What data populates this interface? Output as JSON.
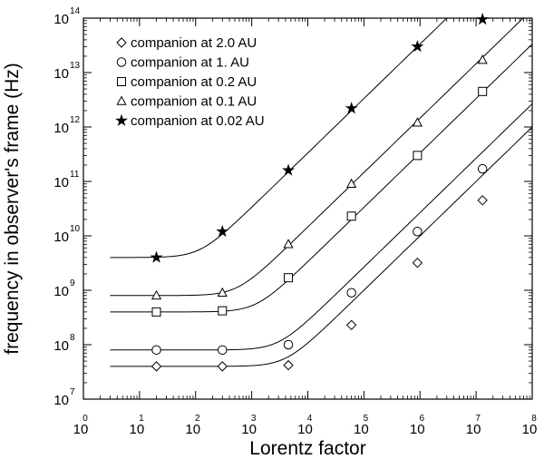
{
  "chart_data": {
    "type": "line",
    "xlabel": "Lorentz factor",
    "ylabel": "frequency in observer's frame (Hz)",
    "x_scale": "log",
    "y_scale": "log",
    "xlim": [
      1,
      100000000
    ],
    "ylim": [
      10000000,
      100000000000000
    ],
    "x_ticks": [
      {
        "base": "10",
        "exp": "0"
      },
      {
        "base": "10",
        "exp": "1"
      },
      {
        "base": "10",
        "exp": "2"
      },
      {
        "base": "10",
        "exp": "3"
      },
      {
        "base": "10",
        "exp": "4"
      },
      {
        "base": "10",
        "exp": "5"
      },
      {
        "base": "10",
        "exp": "6"
      },
      {
        "base": "10",
        "exp": "7"
      },
      {
        "base": "10",
        "exp": "8"
      }
    ],
    "y_ticks": [
      {
        "base": "10",
        "exp": "7"
      },
      {
        "base": "10",
        "exp": "8"
      },
      {
        "base": "10",
        "exp": "9"
      },
      {
        "base": "10",
        "exp": "10"
      },
      {
        "base": "10",
        "exp": "11"
      },
      {
        "base": "10",
        "exp": "12"
      },
      {
        "base": "10",
        "exp": "13"
      },
      {
        "base": "10",
        "exp": "14"
      }
    ],
    "grid": false,
    "legend_position": "top-left",
    "marker_x": [
      20,
      300,
      4500,
      60000,
      900000,
      13000000
    ],
    "series": [
      {
        "name": "companion at 2.0 AU",
        "marker": "diamond",
        "plateau": 40000000,
        "knee": 4000,
        "points": [
          [
            20,
            40000000
          ],
          [
            300,
            40000000
          ],
          [
            4500,
            42000000
          ],
          [
            60000,
            230000000
          ],
          [
            900000,
            3200000000
          ],
          [
            13000000,
            45000000000
          ]
        ]
      },
      {
        "name": "companion at 1. AU",
        "marker": "circle",
        "plateau": 80000000,
        "knee": 3000,
        "points": [
          [
            20,
            80000000
          ],
          [
            300,
            80000000
          ],
          [
            4500,
            100000000
          ],
          [
            60000,
            900000000
          ],
          [
            900000,
            12000000000
          ],
          [
            13000000,
            170000000000
          ]
        ]
      },
      {
        "name": "companion at 0.2 AU",
        "marker": "square",
        "plateau": 400000000,
        "knee": 1200,
        "points": [
          [
            20,
            400000000
          ],
          [
            300,
            420000000
          ],
          [
            4500,
            1700000000
          ],
          [
            60000,
            23000000000
          ],
          [
            900000,
            300000000000
          ],
          [
            13000000,
            4500000000000
          ]
        ]
      },
      {
        "name": "companion at 0.1 AU",
        "marker": "triangle",
        "plateau": 800000000,
        "knee": 550,
        "points": [
          [
            20,
            800000000
          ],
          [
            300,
            900000000
          ],
          [
            4500,
            7000000000
          ],
          [
            60000,
            90000000000
          ],
          [
            900000,
            1200000000000
          ],
          [
            13000000,
            17000000000000
          ]
        ]
      },
      {
        "name": "companion at 0.02 AU",
        "marker": "star",
        "plateau": 4000000000,
        "knee": 120,
        "points": [
          [
            20,
            4000000000
          ],
          [
            300,
            12000000000
          ],
          [
            4500,
            160000000000
          ],
          [
            60000,
            2200000000000
          ],
          [
            900000,
            30000000000000
          ],
          [
            13000000,
            95000000000000
          ]
        ]
      }
    ]
  }
}
